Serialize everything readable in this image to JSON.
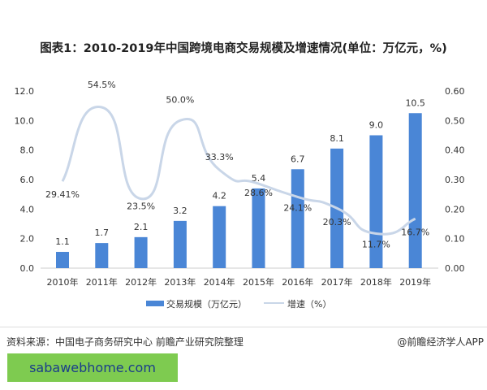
{
  "title": "图表1：2010-2019年中国跨境电商交易规模及增速情况(单位：万亿元，%)",
  "chart_data": {
    "type": "bar+line",
    "categories": [
      "2010年",
      "2011年",
      "2012年",
      "2013年",
      "2014年",
      "2015年",
      "2016年",
      "2017年",
      "2018年",
      "2019年"
    ],
    "series": [
      {
        "name": "交易规模（万亿元）",
        "type": "bar",
        "axis": "left",
        "color": "#4a86d6",
        "values": [
          1.1,
          1.7,
          2.1,
          3.2,
          4.2,
          5.4,
          6.7,
          8.1,
          9.0,
          10.5
        ],
        "labels": [
          "1.1",
          "1.7",
          "2.1",
          "3.2",
          "4.2",
          "5.4",
          "6.7",
          "8.1",
          "9.0",
          "10.5"
        ]
      },
      {
        "name": "增速（%）",
        "type": "line",
        "axis": "right",
        "color": "#c9d6e8",
        "values": [
          0.2941,
          0.545,
          0.235,
          0.5,
          0.333,
          0.286,
          0.241,
          0.203,
          0.117,
          0.167
        ],
        "labels": [
          "29.41%",
          "54.5%",
          "23.5%",
          "50.0%",
          "33.3%",
          "28.6%",
          "24.1%",
          "20.3%",
          "11.7%",
          "16.7%"
        ]
      }
    ],
    "y_left": {
      "range": [
        0,
        12
      ],
      "ticks": [
        "0.0",
        "2.0",
        "4.0",
        "6.0",
        "8.0",
        "10.0",
        "12.0"
      ]
    },
    "y_right": {
      "range": [
        0,
        0.6
      ],
      "ticks": [
        "0.00",
        "0.10",
        "0.20",
        "0.30",
        "0.40",
        "0.50",
        "0.60"
      ]
    },
    "grid": false,
    "legend": "bottom"
  },
  "source": "资料来源：中国电子商务研究中心 前瞻产业研究院整理",
  "credit": "@前瞻经济学人APP",
  "watermark_banner": "sabawebhome.com"
}
